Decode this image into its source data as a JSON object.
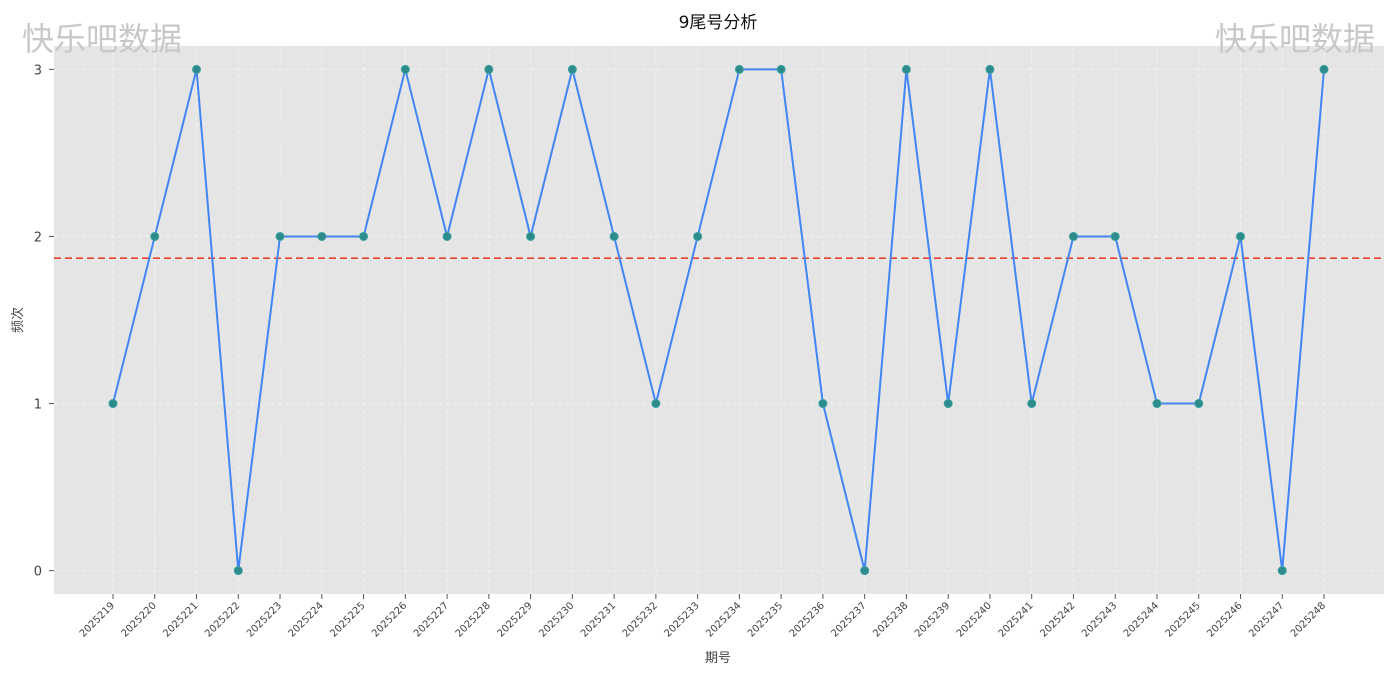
{
  "watermark": {
    "left": "快乐吧数据",
    "right": "快乐吧数据"
  },
  "chart_data": {
    "type": "line",
    "title": "9尾号分析",
    "xlabel": "期号",
    "ylabel": "频次",
    "categories": [
      "2025219",
      "2025220",
      "2025221",
      "2025222",
      "2025223",
      "2025224",
      "2025225",
      "2025226",
      "2025227",
      "2025228",
      "2025229",
      "2025230",
      "2025231",
      "2025232",
      "2025233",
      "2025234",
      "2025235",
      "2025236",
      "2025237",
      "2025238",
      "2025239",
      "2025240",
      "2025241",
      "2025242",
      "2025243",
      "2025244",
      "2025245",
      "2025246",
      "2025247",
      "2025248"
    ],
    "values": [
      1,
      2,
      3,
      0,
      2,
      2,
      2,
      3,
      2,
      3,
      2,
      3,
      2,
      1,
      2,
      3,
      3,
      1,
      0,
      3,
      1,
      3,
      1,
      2,
      2,
      1,
      1,
      2,
      0,
      3
    ],
    "mean_line": 1.87,
    "yticks": [
      0,
      1,
      2,
      3
    ],
    "ylim": [
      -0.14,
      3.14
    ],
    "grid": true,
    "colors": {
      "line": "#4285f4",
      "marker": "#2e8b8b",
      "mean": "#e8412c",
      "background": "#e5e5e5"
    }
  }
}
